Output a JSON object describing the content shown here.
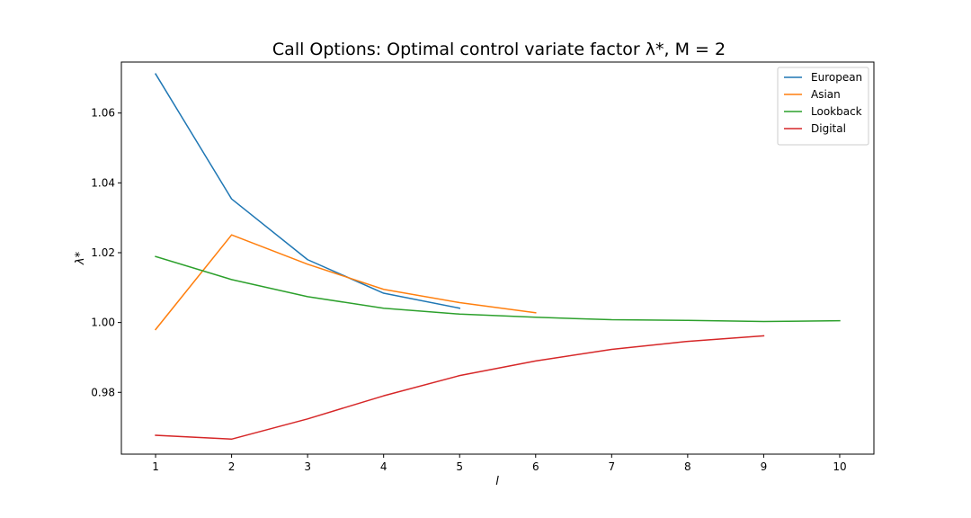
{
  "chart_data": {
    "type": "line",
    "title": "Call Options: Optimal control variate factor λ*, M = 2",
    "xlabel": "l",
    "ylabel": "λ*",
    "xlim": [
      0.55,
      10.45
    ],
    "ylim": [
      0.9623,
      1.0746
    ],
    "xticks": [
      1,
      2,
      3,
      4,
      5,
      6,
      7,
      8,
      9,
      10
    ],
    "yticks": [
      "0.98",
      "1.00",
      "1.02",
      "1.04",
      "1.06"
    ],
    "yticks_values": [
      0.98,
      1.0,
      1.02,
      1.04,
      1.06
    ],
    "legend_position": "top-right",
    "grid": false,
    "series": [
      {
        "name": "European",
        "color": "#1f77b4",
        "x": [
          1,
          2,
          3,
          4,
          5
        ],
        "y": [
          1.0712,
          1.0354,
          1.018,
          1.0084,
          1.0041
        ]
      },
      {
        "name": "Asian",
        "color": "#ff7f0e",
        "x": [
          1,
          2,
          3,
          4,
          5,
          6
        ],
        "y": [
          0.998,
          1.0251,
          1.0167,
          1.0095,
          1.0057,
          1.0028
        ]
      },
      {
        "name": "Lookback",
        "color": "#2ca02c",
        "x": [
          1,
          2,
          3,
          4,
          5,
          6,
          7,
          8,
          9,
          10
        ],
        "y": [
          1.0189,
          1.0123,
          1.0074,
          1.0041,
          1.0024,
          1.0015,
          1.0008,
          1.0006,
          1.0003,
          1.0005
        ]
      },
      {
        "name": "Digital",
        "color": "#d62728",
        "x": [
          1,
          2,
          3,
          4,
          5,
          6,
          7,
          8,
          9
        ],
        "y": [
          0.9677,
          0.9666,
          0.9724,
          0.979,
          0.9848,
          0.989,
          0.9923,
          0.9946,
          0.9962
        ]
      }
    ]
  }
}
